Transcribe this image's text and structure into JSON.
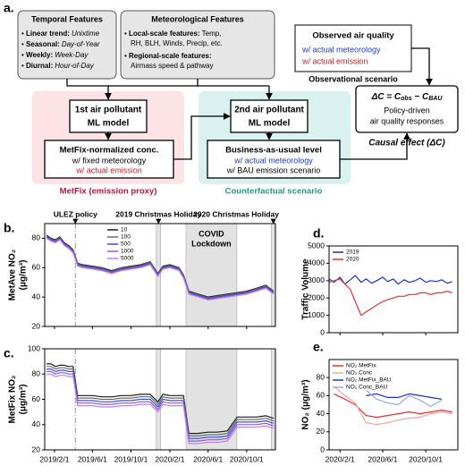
{
  "diagram": {
    "panel_label": "a.",
    "temporal": {
      "title": "Temporal Features",
      "items": [
        {
          "key": "Linear trend:",
          "value": "Unixtime"
        },
        {
          "key": "Seasonal:",
          "value": "Day-of-Year"
        },
        {
          "key": "Weekly:",
          "value": "Week-Day"
        },
        {
          "key": "Diurnal:",
          "value": "Hour-of-Day"
        }
      ]
    },
    "meteorological": {
      "title": "Meteorological Features",
      "local": {
        "key": "Local-scale features:",
        "value": [
          "Temp,",
          "RH, BLH, Winds, Precip, etc."
        ]
      },
      "regional": {
        "key": "Regional-scale features:",
        "value": [
          "Airmass speed & pathway"
        ]
      }
    },
    "observed": {
      "title": "Observed air quality",
      "lines": [
        "w/ actual meteorology",
        "w/ actual emission"
      ]
    },
    "observational_label": "Observational scenario",
    "model1": [
      "1st air pollutant",
      "ML model"
    ],
    "metfix_box": {
      "title": "MetFix-normalized conc.",
      "lines": [
        "w/ fixed meteorology",
        "w/ actual emission"
      ]
    },
    "metfix_label": "MetFix (emission proxy)",
    "model2": [
      "2nd air pollutant",
      "ML model"
    ],
    "bau_box": {
      "title": "Business-as-usual level",
      "lines": [
        "w/ actual meteorology",
        "w/ BAU emission scenario"
      ]
    },
    "counterfactual_label": "Counterfactual scenario",
    "delta_formula": [
      "ΔC = C",
      "obs",
      " − C",
      "BAU"
    ],
    "delta_lines": [
      "Policy-driven",
      "air quality responses"
    ],
    "causal_label": "Causal effect (ΔC)"
  },
  "chart_data": [
    {
      "type": "line",
      "panel_label": "b.",
      "ylabel": [
        "MetAve NO₂",
        "(μg/m³)"
      ],
      "x": [
        "2019/1/7",
        "2019/1/21",
        "2019/2/4",
        "2019/2/18",
        "2019/3/4",
        "2019/3/18",
        "2019/4/1",
        "2019/4/15",
        "2019/5/1",
        "2019/6/1",
        "2019/7/1",
        "2019/8/1",
        "2019/9/1",
        "2019/10/1",
        "2019/11/1",
        "2019/12/1",
        "2019/12/25",
        "2020/1/10",
        "2020/2/1",
        "2020/3/1",
        "2020/3/15",
        "2020/4/1",
        "2020/5/1",
        "2020/6/1",
        "2020/7/1",
        "2020/8/1",
        "2020/9/1",
        "2020/10/1",
        "2020/11/1",
        "2020/12/1",
        "2020/12/25"
      ],
      "xlim": [
        "2019/1/1",
        "2020/12/31"
      ],
      "ylim": [
        20,
        90
      ],
      "yticks": [
        20,
        40,
        60,
        80
      ],
      "legend": "upper left",
      "series": [
        {
          "name": "10",
          "color": "#1a1a1a",
          "values": [
            82,
            80,
            79,
            81,
            77,
            75,
            72,
            63,
            62,
            61,
            60,
            58,
            60,
            61,
            62,
            64,
            56,
            61,
            62,
            60,
            55,
            44,
            42,
            40,
            41,
            42,
            43,
            44,
            46,
            48,
            44
          ]
        },
        {
          "name": "100",
          "color": "#6a6a6a",
          "values": [
            81.5,
            79.5,
            78.5,
            80.5,
            76.5,
            74.5,
            71.5,
            62.5,
            61.5,
            60.5,
            59.5,
            57.5,
            59.5,
            60.5,
            61.5,
            63.5,
            55.5,
            60.5,
            61.5,
            59.5,
            54.5,
            43.5,
            41.5,
            39.5,
            40.5,
            41.5,
            42.5,
            43.5,
            45.5,
            47.5,
            43.5
          ]
        },
        {
          "name": "500",
          "color": "#3a4fd8",
          "values": [
            81,
            79,
            78,
            80,
            76,
            74,
            71,
            62,
            61,
            60,
            59,
            57,
            59,
            60,
            61,
            63,
            55,
            60,
            61,
            59,
            54,
            43,
            41,
            39,
            40,
            41,
            42,
            43,
            45,
            47,
            43
          ]
        },
        {
          "name": "1000",
          "color": "#8a5ad0",
          "values": [
            80.5,
            78.5,
            77.5,
            79.5,
            75.5,
            73.5,
            70.5,
            61.5,
            60.5,
            59.5,
            58.5,
            56.5,
            58.5,
            59.5,
            60.5,
            62.5,
            54.5,
            59.5,
            60.5,
            58.5,
            53.5,
            42.5,
            40.5,
            38.5,
            39.5,
            40.5,
            41.5,
            42.5,
            44.5,
            46.5,
            42.5
          ]
        },
        {
          "name": "5000",
          "color": "#c27ef0",
          "values": [
            80,
            78,
            77,
            79,
            75,
            73,
            70,
            61,
            60,
            59,
            58,
            56,
            58,
            59,
            60,
            62,
            54,
            59,
            60,
            58,
            53,
            42,
            40,
            38,
            39,
            40,
            41,
            42,
            44,
            46,
            42
          ]
        }
      ],
      "events": [
        {
          "label": "ULEZ policy",
          "date": "2019/4/8"
        }
      ],
      "shaded_periods": [
        {
          "label": "2019 Christmas Holiday",
          "start": "2019/12/20",
          "end": "2020/1/3"
        },
        {
          "label": [
            "COVID",
            "Lockdown"
          ],
          "start": "2020/3/23",
          "end": "2020/8/31"
        },
        {
          "label": "2020 Christmas Holiday",
          "start": "2020/12/18",
          "end": "2020/12/31"
        }
      ]
    },
    {
      "type": "line",
      "panel_label": "c.",
      "ylabel": [
        "MetFix NO₂",
        "(μg/m³)"
      ],
      "x": [
        "2019/1/7",
        "2019/1/21",
        "2019/2/4",
        "2019/2/18",
        "2019/3/4",
        "2019/3/18",
        "2019/4/1",
        "2019/4/15",
        "2019/5/1",
        "2019/6/1",
        "2019/7/1",
        "2019/8/1",
        "2019/9/1",
        "2019/10/1",
        "2019/11/1",
        "2019/12/1",
        "2019/12/25",
        "2020/1/10",
        "2020/2/1",
        "2020/3/1",
        "2020/3/15",
        "2020/4/1",
        "2020/5/1",
        "2020/6/1",
        "2020/7/1",
        "2020/8/1",
        "2020/9/1",
        "2020/10/1",
        "2020/11/1",
        "2020/12/1",
        "2020/12/25"
      ],
      "xlim": [
        "2019/1/1",
        "2020/12/31"
      ],
      "xticks": [
        "2019/2/1",
        "2019/6/1",
        "2019/10/1",
        "2020/2/1",
        "2020/6/1",
        "2020/10/1"
      ],
      "ylim": [
        20,
        100
      ],
      "yticks": [
        20,
        40,
        60,
        80,
        100
      ],
      "series": [
        {
          "color": "#1a1a1a",
          "values": [
            88,
            88,
            86,
            87,
            87,
            86,
            86,
            63,
            63,
            63,
            62,
            62,
            63,
            63,
            64,
            64,
            58,
            64,
            63,
            63,
            63,
            33,
            33,
            34,
            34,
            35,
            46,
            46,
            46,
            47,
            45
          ]
        },
        {
          "color": "#6a6a6a",
          "values": [
            86,
            86,
            84,
            85,
            85,
            84,
            84,
            61,
            61,
            61,
            60,
            60,
            61,
            61,
            62,
            62,
            56,
            62,
            61,
            61,
            61,
            31,
            31,
            32,
            32,
            33,
            44,
            44,
            44,
            45,
            43
          ]
        },
        {
          "color": "#3a4fd8",
          "values": [
            84,
            84,
            82,
            83,
            83,
            82,
            82,
            59,
            59,
            59,
            58,
            58,
            59,
            59,
            60,
            60,
            54,
            60,
            59,
            59,
            59,
            29,
            29,
            30,
            30,
            31,
            42,
            42,
            42,
            43,
            41
          ]
        },
        {
          "color": "#8a5ad0",
          "values": [
            82,
            82,
            80,
            81,
            81,
            80,
            80,
            57,
            57,
            57,
            56,
            56,
            57,
            57,
            58,
            58,
            52,
            58,
            57,
            57,
            57,
            27,
            27,
            28,
            28,
            29,
            40,
            40,
            40,
            41,
            39
          ]
        },
        {
          "color": "#c27ef0",
          "values": [
            80,
            80,
            78,
            79,
            79,
            78,
            78,
            55,
            55,
            55,
            54,
            54,
            55,
            55,
            56,
            56,
            50,
            56,
            55,
            55,
            55,
            25,
            25,
            26,
            26,
            27,
            38,
            38,
            38,
            39,
            37
          ]
        }
      ],
      "events": [
        {
          "date": "2019/4/8"
        }
      ],
      "shaded_periods": [
        {
          "start": "2019/12/20",
          "end": "2020/1/3"
        },
        {
          "start": "2020/3/23",
          "end": "2020/8/31"
        },
        {
          "start": "2020/12/18",
          "end": "2020/12/31"
        }
      ]
    },
    {
      "type": "line",
      "panel_label": "d.",
      "ylabel": [
        "Traffic Volume"
      ],
      "x": [
        "2020/1/1",
        "2020/1/15",
        "2020/2/1",
        "2020/2/15",
        "2020/3/1",
        "2020/3/15",
        "2020/4/1",
        "2020/4/15",
        "2020/5/1",
        "2020/5/15",
        "2020/6/1",
        "2020/6/15",
        "2020/7/1",
        "2020/7/15",
        "2020/8/1",
        "2020/8/15",
        "2020/9/1",
        "2020/9/15",
        "2020/10/1",
        "2020/10/15",
        "2020/11/1",
        "2020/11/15",
        "2020/12/1",
        "2020/12/15"
      ],
      "xlim": [
        "2020/1/1",
        "2020/12/31"
      ],
      "ylim": [
        0,
        5000
      ],
      "yticks": [
        0,
        1000,
        2000,
        3000,
        4000,
        5000
      ],
      "legend": "upper left",
      "series": [
        {
          "name": "2019",
          "color": "#1f2fd0",
          "values": [
            3100,
            2900,
            3200,
            2800,
            3050,
            3300,
            2900,
            3100,
            2850,
            3000,
            3200,
            2950,
            3100,
            2800,
            3050,
            2900,
            3000,
            3150,
            2900,
            3000,
            2950,
            3050,
            2850,
            2950
          ]
        },
        {
          "name": "2020",
          "color": "#e83030",
          "values": [
            2900,
            3000,
            3100,
            2800,
            2500,
            1800,
            1000,
            1200,
            1400,
            1600,
            1800,
            1900,
            2000,
            2100,
            2100,
            2200,
            2200,
            2300,
            2300,
            2200,
            2300,
            2300,
            2400,
            2300
          ]
        }
      ]
    },
    {
      "type": "line",
      "panel_label": "e.",
      "ylabel": [
        "NO₂ (μg/m³)"
      ],
      "x": [
        "2020/1/15",
        "2020/2/15",
        "2020/3/15",
        "2020/4/15",
        "2020/5/15",
        "2020/6/15",
        "2020/7/15",
        "2020/8/15",
        "2020/9/15",
        "2020/10/15",
        "2020/11/15",
        "2020/12/15"
      ],
      "xlim": [
        "2020/1/1",
        "2020/12/31"
      ],
      "xticks": [
        "2020/2/1",
        "2020/6/1",
        "2020/10/1"
      ],
      "ylim": [
        0,
        100
      ],
      "yticks": [
        0,
        20,
        40,
        60,
        80
      ],
      "legend": "upper left",
      "series": [
        {
          "name": "NO₂ MetFix",
          "color": "#e83030",
          "values": [
            62,
            56,
            50,
            38,
            36,
            38,
            40,
            42,
            40,
            42,
            44,
            42
          ]
        },
        {
          "name": "NO₂ Conc",
          "color": "#f4a0a0",
          "values": [
            70,
            60,
            52,
            30,
            28,
            30,
            33,
            35,
            36,
            40,
            42,
            40
          ]
        },
        {
          "name": "NO₂ MetFix_BAU",
          "color": "#1f2fd0",
          "values": [
            null,
            null,
            null,
            60,
            62,
            58,
            58,
            62,
            60,
            58,
            56,
            null
          ]
        },
        {
          "name": "NO₂ Conc_BAU",
          "color": "#9aa8e8",
          "values": [
            null,
            null,
            null,
            66,
            56,
            52,
            50,
            60,
            55,
            48,
            55,
            null
          ]
        }
      ]
    }
  ]
}
